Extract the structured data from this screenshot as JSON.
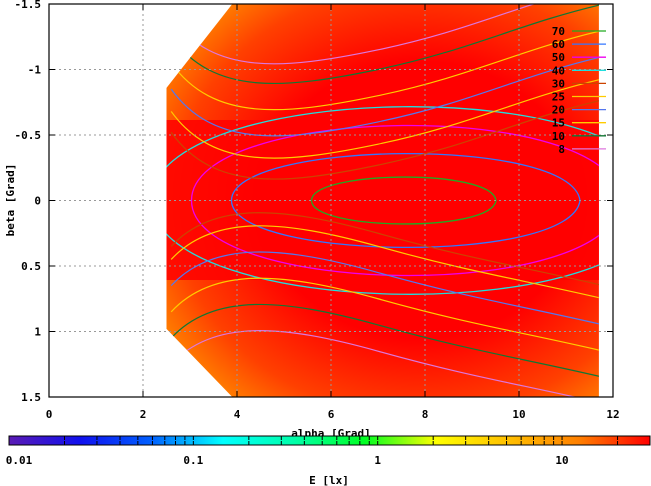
{
  "chart_data": {
    "type": "heatmap",
    "subtype": "contour map with filled color surface",
    "xlabel": "alpha [Grad]",
    "ylabel": "beta [Grad]",
    "xlim": [
      0,
      12
    ],
    "ylim": [
      -1.5,
      1.5
    ],
    "y_reversed": true,
    "x_ticks": [
      "0",
      "2",
      "4",
      "6",
      "8",
      "10",
      "12"
    ],
    "x_tick_values": [
      0,
      2,
      4,
      6,
      8,
      10,
      12
    ],
    "y_ticks": [
      "-1.5",
      "-1",
      "-0.5",
      "0",
      "0.5",
      "1",
      "1.5"
    ],
    "y_tick_values": [
      -1.5,
      -1,
      -0.5,
      0,
      0.5,
      1,
      1.5
    ],
    "grid": true,
    "data_domain": {
      "alpha_min": 2.5,
      "alpha_max": 11.7
    },
    "peak": {
      "alpha": 7.5,
      "beta": 0.0
    },
    "contour_legend": {
      "position": "top-right",
      "levels": [
        {
          "label": "70",
          "color": "#22aa22"
        },
        {
          "label": "60",
          "color": "#3377ff"
        },
        {
          "label": "50",
          "color": "#ee00ee"
        },
        {
          "label": "40",
          "color": "#22dddd"
        },
        {
          "label": "30",
          "color": "#cc4400"
        },
        {
          "label": "25",
          "color": "#ffcc00"
        },
        {
          "label": "20",
          "color": "#5577ee"
        },
        {
          "label": "15",
          "color": "#ffcc00"
        },
        {
          "label": "10",
          "color": "#117733"
        },
        {
          "label": "8",
          "color": "#dd77dd"
        }
      ]
    },
    "colorbar": {
      "label": "E [lx]",
      "scale": "log",
      "range": [
        0.01,
        30
      ],
      "tick_labels": [
        "0.01",
        "0.1",
        "1",
        "10"
      ],
      "tick_values": [
        0.01,
        0.1,
        1,
        10
      ],
      "colors": [
        "#5a1ab4",
        "#1010ee",
        "#0060ff",
        "#00ffff",
        "#00ffaa",
        "#00ff22",
        "#ffff00",
        "#ffc000",
        "#ff8000",
        "#ff0000"
      ]
    }
  }
}
